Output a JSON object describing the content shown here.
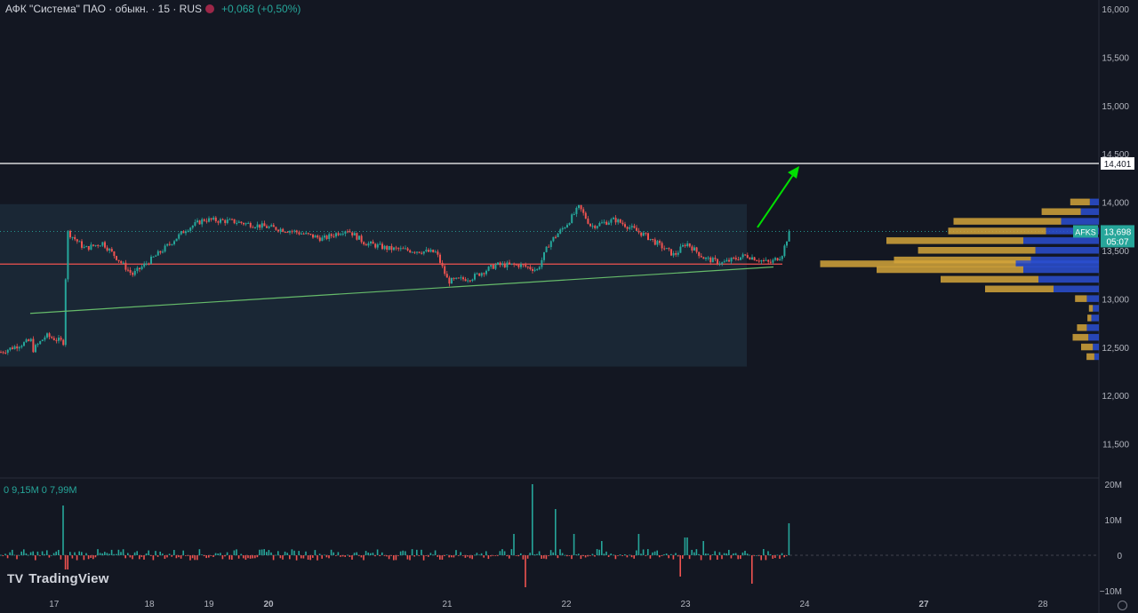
{
  "header": {
    "title": "АФК \"Система\" ПАО · обыкн. · 15 · RUS",
    "change": "+0,068 (+0,50%)"
  },
  "volume_legend": "0 9,15M 0 7,99M",
  "branding": "TradingView",
  "price_label": {
    "ticker": "AFKS",
    "price": "13,698",
    "countdown": "05:07"
  },
  "level_label": "14,401",
  "colors": {
    "background": "#131722",
    "up": "#26a69a",
    "down": "#ef5350",
    "level_line": "#ffffff",
    "range_box": "#1c2a38",
    "support_line": "#ef5350",
    "trend_line": "#66bb6a",
    "arrow": "#00e000",
    "profile_up": "#d4a53a",
    "profile_down": "#2c4fd0"
  },
  "chart_data": [
    {
      "type": "candlestick",
      "title": "",
      "x_ticks": [
        "17",
        "18",
        "19",
        "20",
        "21",
        "22",
        "23",
        "24",
        "27",
        "28"
      ],
      "y_ticks": [
        "16,000",
        "15,500",
        "15,000",
        "14,500",
        "14,000",
        "13,500",
        "13,000",
        "12,500",
        "12,000",
        "11,500"
      ],
      "ylim": [
        11300,
        16100
      ],
      "last_price": 13.698,
      "horizontal_levels": [
        14.401,
        13.36
      ],
      "consolidation_range": [
        12.3,
        13.98
      ],
      "trend_line": {
        "from": 12.85,
        "to": 13.33
      },
      "price_path": [
        [
          0,
          12.45
        ],
        [
          0.25,
          12.62
        ],
        [
          0.55,
          12.55
        ],
        [
          0.6,
          13.7
        ],
        [
          0.9,
          13.52
        ],
        [
          1.2,
          13.58
        ],
        [
          1.7,
          13.25
        ],
        [
          2.2,
          13.5
        ],
        [
          2.6,
          13.72
        ],
        [
          2.9,
          13.82
        ],
        [
          3.4,
          13.8
        ],
        [
          3.9,
          13.75
        ],
        [
          4.4,
          13.7
        ],
        [
          4.9,
          13.62
        ],
        [
          5.3,
          13.72
        ],
        [
          5.6,
          13.58
        ],
        [
          6.0,
          13.52
        ],
        [
          6.8,
          13.48
        ],
        [
          7.0,
          13.18
        ],
        [
          7.4,
          13.22
        ],
        [
          7.8,
          13.35
        ],
        [
          8.2,
          13.35
        ],
        [
          8.5,
          13.3
        ],
        [
          8.7,
          13.58
        ],
        [
          9.0,
          13.78
        ],
        [
          9.2,
          13.95
        ],
        [
          9.4,
          13.75
        ],
        [
          9.8,
          13.82
        ],
        [
          10.3,
          13.66
        ],
        [
          10.8,
          13.45
        ],
        [
          11.0,
          13.58
        ],
        [
          11.3,
          13.42
        ],
        [
          11.6,
          13.37
        ],
        [
          12.0,
          13.45
        ],
        [
          12.4,
          13.37
        ],
        [
          12.6,
          13.45
        ],
        [
          12.73,
          13.698
        ]
      ],
      "date_positions": {
        "17": 0.4,
        "18": 2.0,
        "19": 3.0,
        "20": 4.0,
        "21": 7.0,
        "22": 9.0,
        "23": 11.0,
        "24": 13.0,
        "27": 15.0,
        "28": 17.0
      }
    },
    {
      "type": "bar",
      "title": "Volume",
      "y_ticks": [
        "20M",
        "10M",
        "0",
        "−10M"
      ],
      "ylim": [
        -11,
        21
      ],
      "last_values": [
        "9,15M",
        "7,99M"
      ],
      "spikes": [
        {
          "x": 0.55,
          "value": 14
        },
        {
          "x": 0.6,
          "value": -4
        },
        {
          "x": 8.4,
          "value": 20
        },
        {
          "x": 8.3,
          "value": -9
        },
        {
          "x": 8.1,
          "value": 6
        },
        {
          "x": 8.8,
          "value": 13
        },
        {
          "x": 9.1,
          "value": 6
        },
        {
          "x": 9.6,
          "value": 4
        },
        {
          "x": 10.2,
          "value": 6
        },
        {
          "x": 10.9,
          "value": -6
        },
        {
          "x": 11.0,
          "value": 5
        },
        {
          "x": 11.3,
          "value": 4
        },
        {
          "x": 12.1,
          "value": -8
        },
        {
          "x": 12.73,
          "value": 9
        }
      ]
    },
    {
      "type": "horizontal_bar",
      "title": "Volume profile",
      "rows": [
        {
          "price": 14.0,
          "up": 0.1,
          "down": 0.06
        },
        {
          "price": 13.9,
          "up": 0.2,
          "down": 0.12
        },
        {
          "price": 13.8,
          "up": 0.55,
          "down": 0.25
        },
        {
          "price": 13.7,
          "up": 0.5,
          "down": 0.35
        },
        {
          "price": 13.6,
          "up": 0.7,
          "down": 0.5
        },
        {
          "price": 13.5,
          "up": 0.6,
          "down": 0.42
        },
        {
          "price": 13.4,
          "up": 0.7,
          "down": 0.45
        },
        {
          "price": 13.36,
          "up": 1.0,
          "down": 0.55
        },
        {
          "price": 13.3,
          "up": 0.75,
          "down": 0.5
        },
        {
          "price": 13.2,
          "up": 0.5,
          "down": 0.4
        },
        {
          "price": 13.1,
          "up": 0.35,
          "down": 0.3
        },
        {
          "price": 13.0,
          "up": 0.06,
          "down": 0.08
        },
        {
          "price": 12.9,
          "up": 0.02,
          "down": 0.04
        },
        {
          "price": 12.8,
          "up": 0.02,
          "down": 0.05
        },
        {
          "price": 12.7,
          "up": 0.05,
          "down": 0.08
        },
        {
          "price": 12.6,
          "up": 0.08,
          "down": 0.07
        },
        {
          "price": 12.5,
          "up": 0.06,
          "down": 0.04
        },
        {
          "price": 12.4,
          "up": 0.04,
          "down": 0.03
        }
      ]
    }
  ]
}
